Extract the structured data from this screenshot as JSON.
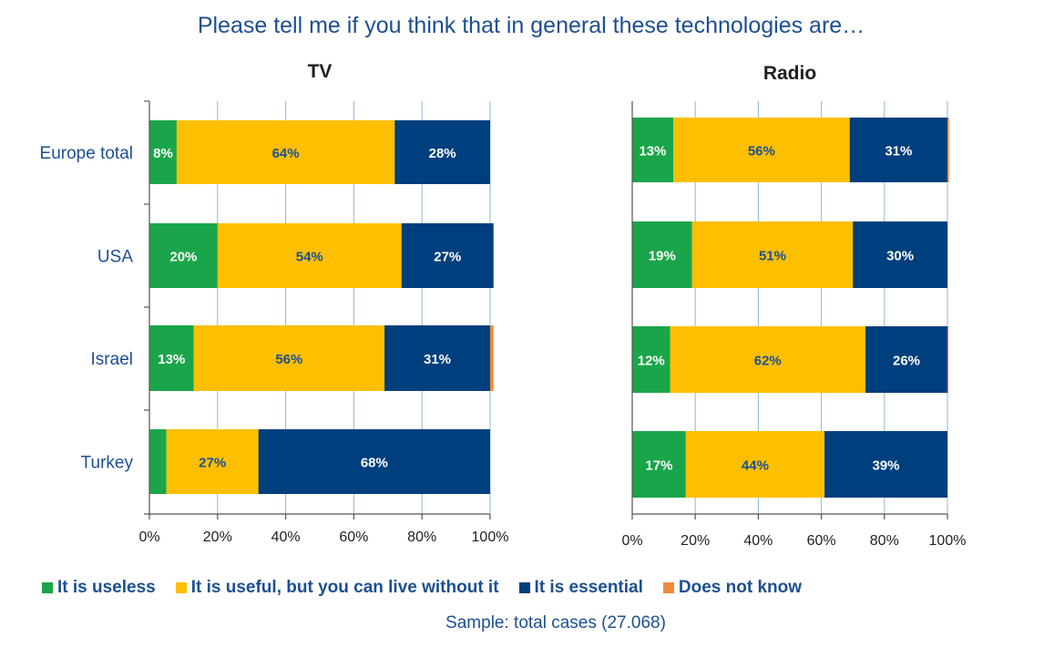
{
  "title": "Please tell me if you think that in general these technologies are…",
  "sample_note": "Sample: total cases (27.068)",
  "colors": {
    "useless": "#1aa54a",
    "useful": "#fdbf00",
    "essential": "#003f7d",
    "dk": "#f08a3c",
    "grid": "#8fb4dc",
    "axis": "#555555",
    "text_blue": "#1d4f91"
  },
  "legend": [
    {
      "label": "It is useless",
      "color": "#1aa54a"
    },
    {
      "label": "It is useful, but you can live without it",
      "color": "#fdbf00"
    },
    {
      "label": "It is essential",
      "color": "#003f7d"
    },
    {
      "label": "Does not know",
      "color": "#f08a3c"
    }
  ],
  "chart_data": [
    {
      "type": "bar",
      "orientation": "horizontal",
      "stacked": true,
      "title": "TV",
      "categories": [
        "Europe total",
        "USA",
        "Israel",
        "Turkey"
      ],
      "series": [
        {
          "name": "It is useless",
          "values": [
            8,
            20,
            13,
            5
          ],
          "labels": [
            "8%",
            "20%",
            "13%",
            ""
          ]
        },
        {
          "name": "It is useful, but you can live without it",
          "values": [
            64,
            54,
            56,
            27
          ],
          "labels": [
            "64%",
            "54%",
            "56%",
            "27%"
          ]
        },
        {
          "name": "It is essential",
          "values": [
            28,
            27,
            31,
            68
          ],
          "labels": [
            "28%",
            "27%",
            "31%",
            "68%"
          ]
        },
        {
          "name": "Does not know",
          "values": [
            0,
            0,
            1,
            0
          ],
          "labels": [
            "",
            "",
            "",
            ""
          ]
        }
      ],
      "xlim": [
        0,
        100
      ],
      "xticks": [
        "0%",
        "20%",
        "40%",
        "60%",
        "80%",
        "100%"
      ],
      "grid": true
    },
    {
      "type": "bar",
      "orientation": "horizontal",
      "stacked": true,
      "title": "Radio",
      "categories": [
        "Europe total",
        "USA",
        "Israel",
        "Turkey"
      ],
      "series": [
        {
          "name": "It is useless",
          "values": [
            13,
            19,
            12,
            17
          ],
          "labels": [
            "13%",
            "19%",
            "12%",
            "17%"
          ]
        },
        {
          "name": "It is useful, but you can live without it",
          "values": [
            56,
            51,
            62,
            44
          ],
          "labels": [
            "56%",
            "51%",
            "62%",
            "44%"
          ]
        },
        {
          "name": "It is essential",
          "values": [
            31,
            30,
            26,
            39
          ],
          "labels": [
            "31%",
            "30%",
            "26%",
            "39%"
          ]
        },
        {
          "name": "Does not know",
          "values": [
            0.5,
            0,
            0.3,
            0
          ],
          "labels": [
            "",
            "",
            "",
            ""
          ]
        }
      ],
      "xlim": [
        0,
        100
      ],
      "xticks": [
        "0%",
        "20%",
        "40%",
        "60%",
        "80%",
        "100%"
      ],
      "grid": true
    }
  ]
}
